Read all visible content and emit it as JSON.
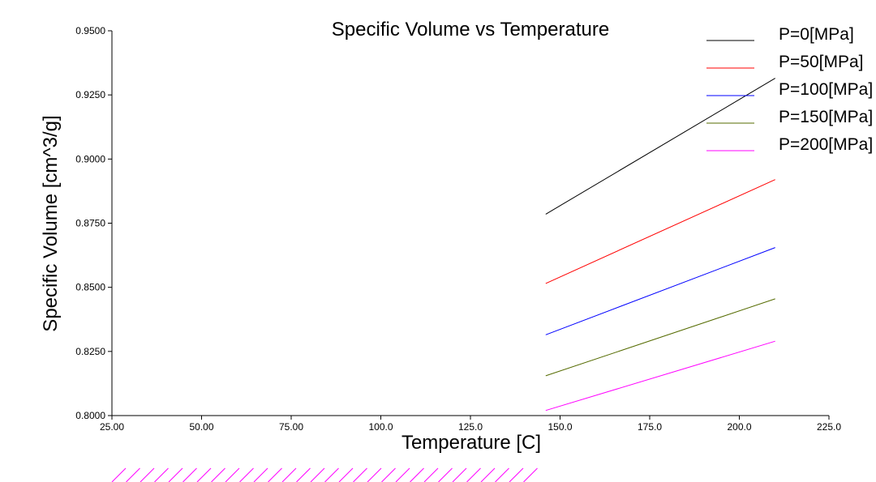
{
  "chart_data": {
    "type": "line",
    "title": "Specific Volume vs Temperature",
    "xlabel": "Temperature [C]",
    "ylabel": "Specific Volume [cm^3/g]",
    "xlim": [
      25,
      225
    ],
    "ylim": [
      0.8,
      0.95
    ],
    "x_ticks": [
      "25.00",
      "50.00",
      "75.00",
      "100.0",
      "125.0",
      "150.0",
      "175.0",
      "200.0",
      "225.0"
    ],
    "y_ticks": [
      "0.8000",
      "0.8250",
      "0.8500",
      "0.8750",
      "0.9000",
      "0.9250",
      "0.9500"
    ],
    "legend_position": "top-right",
    "series": [
      {
        "name": "P=0[MPa]",
        "color": "#000000",
        "x": [
          146,
          210
        ],
        "values": [
          0.8785,
          0.9315
        ]
      },
      {
        "name": "P=50[MPa]",
        "color": "#ff0000",
        "x": [
          146,
          210
        ],
        "values": [
          0.8515,
          0.892
        ]
      },
      {
        "name": "P=100[MPa]",
        "color": "#0000ff",
        "x": [
          146,
          210
        ],
        "values": [
          0.8315,
          0.8655
        ]
      },
      {
        "name": "P=150[MPa]",
        "color": "#556b00",
        "x": [
          146,
          210
        ],
        "values": [
          0.8155,
          0.8455
        ]
      },
      {
        "name": "P=200[MPa]",
        "color": "#ff00ff",
        "x": [
          146,
          210
        ],
        "values": [
          0.802,
          0.829
        ]
      }
    ],
    "hatch_color": "#ff00ff"
  }
}
